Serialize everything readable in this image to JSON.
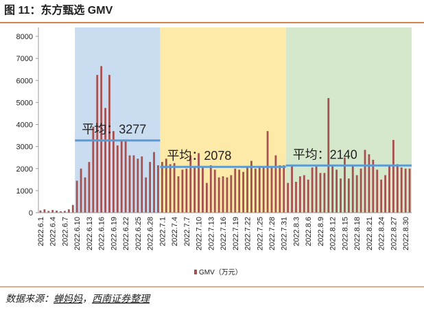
{
  "title": "图 11：东方甄选 GMV",
  "source": {
    "prefix": "数据来源：",
    "names": [
      "蝉妈妈",
      "西南证券整理"
    ],
    "separator": "，"
  },
  "chart_data": {
    "type": "bar",
    "categories": [
      "2022.6.1",
      null,
      null,
      "2022.6.4",
      null,
      null,
      "2022.6.7",
      null,
      null,
      "2022.6.10",
      null,
      null,
      "2022.6.13",
      null,
      null,
      "2022.6.16",
      null,
      null,
      "2022.6.19",
      null,
      null,
      "2022.6.22",
      null,
      null,
      "2022.6.25",
      null,
      null,
      "2022.6.28",
      null,
      null,
      "2022.7.1",
      null,
      null,
      "2022.7.4",
      null,
      null,
      "2022.7.7",
      null,
      null,
      "2022.7.10",
      null,
      null,
      "2022.7.13",
      null,
      null,
      "2022.7.16",
      null,
      null,
      "2022.7.19",
      null,
      null,
      "2022.7.22",
      null,
      null,
      "2022.7.25",
      null,
      null,
      "2022.7.28",
      null,
      null,
      "2022.7.31",
      null,
      null,
      "2022.8.3",
      null,
      null,
      "2022.8.6",
      null,
      null,
      "2022.8.9",
      null,
      null,
      "2022.8.12",
      null,
      null,
      "2022.8.15",
      null,
      null,
      "2022.8.18",
      null,
      null,
      "2022.8.21",
      null,
      null,
      "2022.8.24",
      null,
      null,
      "2022.8.27",
      null,
      null,
      "2022.8.30",
      null
    ],
    "series": [
      {
        "name": "GMV（万元）",
        "color": "#a5514f",
        "values": [
          100,
          150,
          80,
          120,
          90,
          60,
          80,
          150,
          350,
          1450,
          2000,
          1600,
          2300,
          3900,
          6250,
          6650,
          4750,
          6250,
          3700,
          3050,
          3250,
          3300,
          2600,
          2600,
          2450,
          2550,
          1600,
          2300,
          2750,
          2150,
          2300,
          2450,
          2200,
          2250,
          1650,
          1950,
          2000,
          2600,
          2100,
          2700,
          2050,
          1350,
          2150,
          1950,
          1600,
          1650,
          1600,
          1700,
          2000,
          1950,
          1850,
          2100,
          2350,
          2000,
          2050,
          2100,
          3700,
          2100,
          2600,
          2150,
          2150,
          1350,
          2100,
          1400,
          1650,
          1700,
          1500,
          2050,
          2100,
          1800,
          1800,
          5200,
          2100,
          1950,
          1550,
          2500,
          1550,
          2150,
          1700,
          2000,
          2850,
          2650,
          2400,
          1950,
          1500,
          1700,
          2150,
          3300,
          2200,
          2050,
          2000,
          2000
        ]
      }
    ],
    "ylim": [
      0,
      8000
    ],
    "yticks": [
      0,
      1000,
      2000,
      3000,
      4000,
      5000,
      6000,
      7000,
      8000
    ],
    "averages": [
      {
        "label": "平均：3277",
        "value": 3277,
        "start": 9,
        "end": 29,
        "color": "#c9dcf0"
      },
      {
        "label": "平均：2078",
        "value": 2078,
        "start": 30,
        "end": 60,
        "color": "#fde9a8"
      },
      {
        "label": "平均：2140",
        "value": 2140,
        "start": 61,
        "end": 91,
        "color": "#d5e8cc"
      }
    ],
    "average_line_color": "#5b9bd5"
  }
}
